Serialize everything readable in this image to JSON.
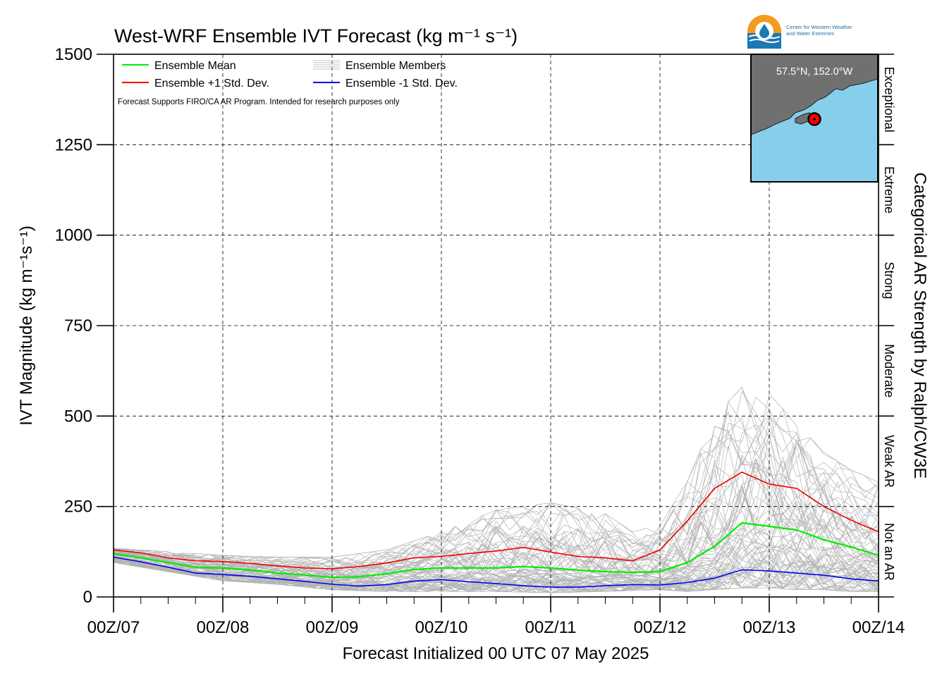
{
  "title": "West-WRF Ensemble IVT Forecast (kg m⁻¹ s⁻¹)",
  "logo": {
    "line1": "Center for Western Weather",
    "line2": "and Water Extremes"
  },
  "inset": {
    "location": "57.5°N, 152.0°W",
    "land_color": "#707070",
    "sea_color": "#87ceeb",
    "marker_color": "#ff0000"
  },
  "note": "Forecast Supports FIRO/CA AR Program. Intended for research purposes only",
  "right_axis_title": "Categorical AR Strength by Ralph/CW3E",
  "chart_data": {
    "type": "line",
    "title": "West-WRF Ensemble IVT Forecast (kg m⁻¹ s⁻¹)",
    "xlabel": "Forecast Initialized 00 UTC 07 May 2025",
    "ylabel": "IVT Magnitude (kg m⁻¹s⁻¹)",
    "ylim": [
      0,
      1500
    ],
    "yticks": [
      0,
      250,
      500,
      750,
      1000,
      1250,
      1500
    ],
    "xlim": [
      0,
      168
    ],
    "xticks": [
      0,
      24,
      48,
      72,
      96,
      120,
      144,
      168
    ],
    "xticklabels": [
      "00Z/07",
      "00Z/08",
      "00Z/09",
      "00Z/10",
      "00Z/11",
      "00Z/12",
      "00Z/13",
      "00Z/14"
    ],
    "x_units": "forecast hours",
    "grid": true,
    "legend_position": "top-left",
    "categories_ar": [
      {
        "label": "Not an AR",
        "range": [
          0,
          250
        ]
      },
      {
        "label": "Weak AR",
        "range": [
          250,
          500
        ]
      },
      {
        "label": "Moderate",
        "range": [
          500,
          750
        ]
      },
      {
        "label": "Strong",
        "range": [
          750,
          1000
        ]
      },
      {
        "label": "Extreme",
        "range": [
          1000,
          1250
        ]
      },
      {
        "label": "Exceptional",
        "range": [
          1250,
          1500
        ]
      }
    ],
    "series": [
      {
        "name": "Ensemble Mean",
        "color": "#00ee00",
        "x": [
          0,
          6,
          12,
          18,
          24,
          30,
          36,
          42,
          48,
          54,
          60,
          66,
          72,
          78,
          84,
          90,
          96,
          102,
          108,
          114,
          120,
          126,
          132,
          138,
          144,
          150,
          156,
          162,
          168
        ],
        "y": [
          120,
          108,
          95,
          82,
          80,
          74,
          66,
          61,
          54,
          56,
          64,
          76,
          80,
          80,
          80,
          84,
          80,
          74,
          70,
          68,
          70,
          95,
          140,
          205,
          195,
          185,
          158,
          138,
          115
        ]
      },
      {
        "name": "Ensemble +1 Std. Dev.",
        "color": "#ee0000",
        "x": [
          0,
          6,
          12,
          18,
          24,
          30,
          36,
          42,
          48,
          54,
          60,
          66,
          72,
          78,
          84,
          90,
          96,
          102,
          108,
          114,
          120,
          126,
          132,
          138,
          144,
          150,
          156,
          162,
          168
        ],
        "y": [
          130,
          122,
          108,
          100,
          98,
          93,
          86,
          80,
          78,
          84,
          94,
          108,
          112,
          120,
          127,
          137,
          124,
          112,
          108,
          100,
          130,
          210,
          300,
          345,
          312,
          300,
          250,
          212,
          180
        ]
      },
      {
        "name": "Ensemble -1 Std. Dev.",
        "color": "#0000ee",
        "x": [
          0,
          6,
          12,
          18,
          24,
          30,
          36,
          42,
          48,
          54,
          60,
          66,
          72,
          78,
          84,
          90,
          96,
          102,
          108,
          114,
          120,
          126,
          132,
          138,
          144,
          150,
          156,
          162,
          168
        ],
        "y": [
          110,
          97,
          82,
          66,
          62,
          57,
          50,
          43,
          35,
          30,
          34,
          44,
          48,
          42,
          37,
          31,
          27,
          27,
          31,
          34,
          33,
          40,
          52,
          75,
          72,
          66,
          60,
          50,
          44
        ]
      }
    ],
    "members_series_name": "Ensemble Members",
    "members_color": "#b3b3b3",
    "member_envelope": {
      "x": [
        0,
        12,
        24,
        36,
        48,
        60,
        72,
        84,
        96,
        108,
        114,
        120,
        126,
        132,
        138,
        144,
        150,
        156,
        162,
        168
      ],
      "low": [
        95,
        70,
        45,
        35,
        20,
        15,
        15,
        15,
        12,
        15,
        18,
        20,
        15,
        20,
        25,
        25,
        20,
        20,
        15,
        15
      ],
      "high": [
        135,
        125,
        115,
        110,
        110,
        130,
        180,
        240,
        260,
        230,
        180,
        200,
        320,
        500,
        580,
        560,
        480,
        400,
        350,
        320
      ]
    }
  }
}
